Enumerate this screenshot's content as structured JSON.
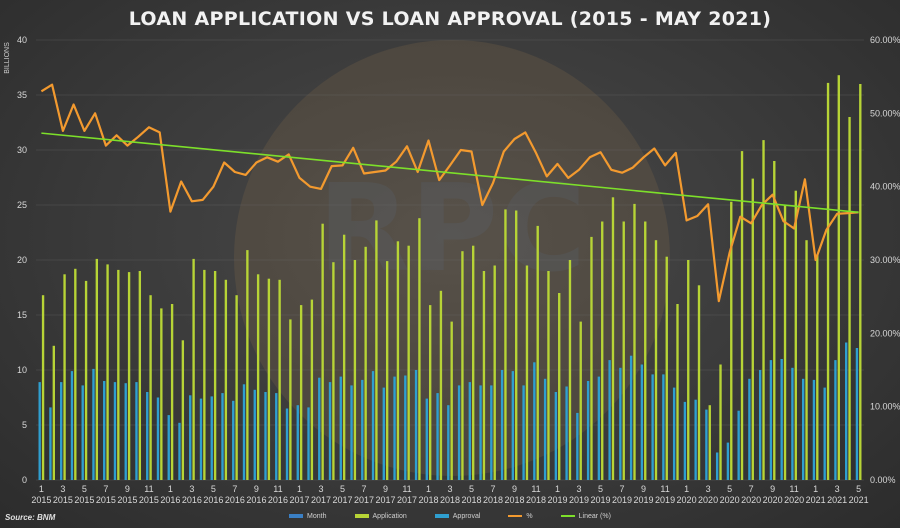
{
  "title": "LOAN APPLICATION VS LOAN APPROVAL (2015 - MAY 2021)",
  "source": "Source: BNM",
  "watermark": "RPC",
  "colors": {
    "application": "#b7d436",
    "approval": "#2f9fd0",
    "percent": "#f39a2f",
    "linear": "#7de02a",
    "month": "#3a7fc4"
  },
  "chart_data": {
    "type": "bar",
    "left_axis": {
      "label": "BILLIONS",
      "ylim": [
        0,
        40
      ],
      "ticks": [
        "0",
        "5",
        "10",
        "15",
        "20",
        "25",
        "30",
        "35",
        "40"
      ]
    },
    "right_axis": {
      "ylim": [
        0,
        60
      ],
      "ticks": [
        "0.00%",
        "10.00%",
        "20.00%",
        "30.00%",
        "40.00%",
        "50.00%",
        "60.00%"
      ]
    },
    "x_tick_labels": [
      {
        "i": 0,
        "m": "1",
        "y": "2015"
      },
      {
        "i": 2,
        "m": "3",
        "y": "2015"
      },
      {
        "i": 4,
        "m": "5",
        "y": "2015"
      },
      {
        "i": 6,
        "m": "7",
        "y": "2015"
      },
      {
        "i": 8,
        "m": "9",
        "y": "2015"
      },
      {
        "i": 10,
        "m": "11",
        "y": "2015"
      },
      {
        "i": 12,
        "m": "1",
        "y": "2016"
      },
      {
        "i": 14,
        "m": "3",
        "y": "2016"
      },
      {
        "i": 16,
        "m": "5",
        "y": "2016"
      },
      {
        "i": 18,
        "m": "7",
        "y": "2016"
      },
      {
        "i": 20,
        "m": "9",
        "y": "2016"
      },
      {
        "i": 22,
        "m": "11",
        "y": "2016"
      },
      {
        "i": 24,
        "m": "1",
        "y": "2017"
      },
      {
        "i": 26,
        "m": "3",
        "y": "2017"
      },
      {
        "i": 28,
        "m": "5",
        "y": "2017"
      },
      {
        "i": 30,
        "m": "7",
        "y": "2017"
      },
      {
        "i": 32,
        "m": "9",
        "y": "2017"
      },
      {
        "i": 34,
        "m": "11",
        "y": "2017"
      },
      {
        "i": 36,
        "m": "1",
        "y": "2018"
      },
      {
        "i": 38,
        "m": "3",
        "y": "2018"
      },
      {
        "i": 40,
        "m": "5",
        "y": "2018"
      },
      {
        "i": 42,
        "m": "7",
        "y": "2018"
      },
      {
        "i": 44,
        "m": "9",
        "y": "2018"
      },
      {
        "i": 46,
        "m": "11",
        "y": "2018"
      },
      {
        "i": 48,
        "m": "1",
        "y": "2019"
      },
      {
        "i": 50,
        "m": "3",
        "y": "2019"
      },
      {
        "i": 52,
        "m": "5",
        "y": "2019"
      },
      {
        "i": 54,
        "m": "7",
        "y": "2019"
      },
      {
        "i": 56,
        "m": "9",
        "y": "2019"
      },
      {
        "i": 58,
        "m": "11",
        "y": "2019"
      },
      {
        "i": 60,
        "m": "1",
        "y": "2020"
      },
      {
        "i": 62,
        "m": "3",
        "y": "2020"
      },
      {
        "i": 64,
        "m": "5",
        "y": "2020"
      },
      {
        "i": 66,
        "m": "7",
        "y": "2020"
      },
      {
        "i": 68,
        "m": "9",
        "y": "2020"
      },
      {
        "i": 70,
        "m": "11",
        "y": "2020"
      },
      {
        "i": 72,
        "m": "1",
        "y": "2021"
      },
      {
        "i": 74,
        "m": "3",
        "y": "2021"
      },
      {
        "i": 76,
        "m": "5",
        "y": "2021"
      }
    ],
    "series": [
      {
        "name": "Application",
        "axis": "left",
        "values": [
          16.8,
          12.2,
          18.7,
          19.2,
          18.1,
          20.1,
          19.6,
          19.1,
          18.9,
          19.0,
          16.8,
          15.6,
          16.0,
          12.7,
          20.1,
          19.1,
          19.0,
          18.2,
          16.8,
          20.9,
          18.7,
          18.3,
          18.2,
          14.6,
          15.9,
          16.4,
          23.3,
          19.8,
          22.3,
          20.0,
          21.2,
          23.6,
          19.9,
          21.7,
          21.3,
          23.8,
          15.9,
          17.2,
          14.4,
          20.8,
          21.3,
          19.0,
          19.5,
          24.6,
          24.5,
          19.5,
          23.1,
          19.0,
          17.0,
          20.0,
          14.4,
          22.1,
          23.5,
          25.7,
          23.5,
          25.1,
          23.5,
          21.8,
          20.3,
          16.0,
          20.0,
          17.7,
          6.8,
          10.5,
          25.3,
          29.9,
          27.4,
          30.9,
          29.0,
          25.0,
          26.3,
          21.8,
          20.5,
          36.1,
          36.8,
          33.0,
          36.0
        ]
      },
      {
        "name": "Approval",
        "axis": "left",
        "values": [
          8.9,
          6.6,
          8.9,
          9.9,
          8.6,
          10.1,
          9.0,
          8.9,
          8.8,
          8.9,
          8.0,
          7.5,
          5.9,
          5.2,
          7.7,
          7.4,
          7.6,
          7.9,
          7.2,
          8.7,
          8.2,
          8.0,
          7.9,
          6.5,
          6.8,
          6.6,
          9.3,
          8.9,
          9.4,
          8.6,
          9.1,
          9.9,
          8.4,
          9.4,
          9.5,
          10.0,
          7.4,
          7.9,
          6.8,
          8.6,
          8.9,
          8.6,
          8.6,
          10.0,
          9.9,
          8.6,
          10.7,
          9.2,
          8.0,
          8.5,
          6.1,
          9.0,
          9.4,
          10.9,
          10.2,
          11.3,
          10.5,
          9.6,
          9.6,
          8.4,
          7.1,
          7.3,
          6.4,
          2.5,
          3.4,
          6.3,
          9.2,
          10.0,
          10.9,
          11.0,
          10.2,
          9.2,
          9.1,
          8.4,
          10.9,
          12.5,
          12.0
        ]
      },
      {
        "name": "%",
        "axis": "right",
        "values": [
          53.0,
          53.9,
          47.6,
          51.2,
          47.6,
          50.0,
          45.6,
          47.0,
          45.6,
          46.8,
          48.1,
          47.4,
          36.6,
          40.7,
          38.0,
          38.2,
          40.0,
          43.3,
          42.0,
          41.6,
          43.3,
          44.0,
          43.4,
          44.4,
          41.2,
          40.0,
          39.7,
          42.8,
          42.9,
          45.3,
          41.8,
          42.0,
          42.2,
          43.4,
          45.5,
          42.0,
          46.3,
          40.9,
          42.9,
          45.0,
          44.8,
          37.5,
          40.5,
          44.8,
          46.5,
          47.4,
          44.6,
          41.4,
          43.1,
          41.2,
          42.3,
          44.0,
          44.7,
          42.3,
          41.9,
          42.6,
          44.0,
          45.2,
          42.9,
          44.6,
          35.4,
          36.0,
          37.6,
          24.4,
          31.0,
          35.9,
          35.0,
          37.5,
          38.9,
          35.3,
          34.3,
          41.0,
          30.0,
          34.1,
          36.3,
          36.4,
          36.5
        ]
      },
      {
        "name": "Linear (%)",
        "axis": "right",
        "values": [
          47.3,
          36.5
        ]
      }
    ],
    "legend": [
      "Month",
      "Application",
      "Approval",
      "%",
      "Linear (%)"
    ],
    "grid": true,
    "legend_position": "bottom"
  }
}
